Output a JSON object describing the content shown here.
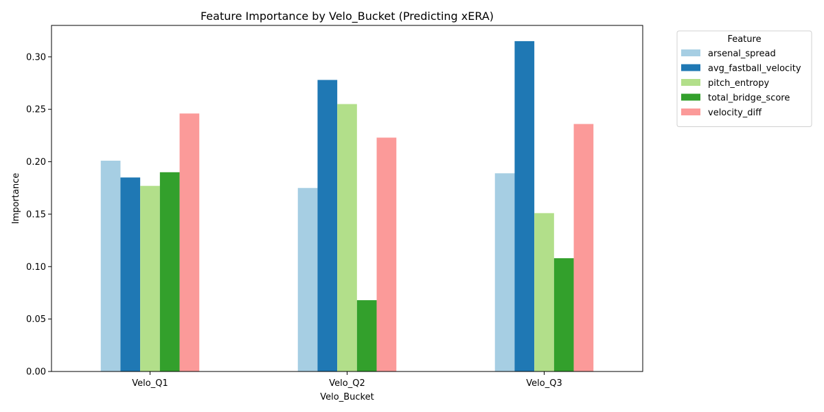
{
  "chart_data": {
    "type": "bar",
    "title": "Feature Importance by Velo_Bucket (Predicting xERA)",
    "xlabel": "Velo_Bucket",
    "ylabel": "Importance",
    "categories": [
      "Velo_Q1",
      "Velo_Q2",
      "Velo_Q3"
    ],
    "ylim": [
      0,
      0.33
    ],
    "yticks": [
      0.0,
      0.05,
      0.1,
      0.15,
      0.2,
      0.25,
      0.3
    ],
    "ytick_labels": [
      "0.00",
      "0.05",
      "0.10",
      "0.15",
      "0.20",
      "0.25",
      "0.30"
    ],
    "grid": false,
    "legend": {
      "title": "Feature",
      "placement": "outside-top-right"
    },
    "series": [
      {
        "name": "arsenal_spread",
        "color": "#a6cee3",
        "values": [
          0.201,
          0.175,
          0.189
        ]
      },
      {
        "name": "avg_fastball_velocity",
        "color": "#1f78b4",
        "values": [
          0.185,
          0.278,
          0.315
        ]
      },
      {
        "name": "pitch_entropy",
        "color": "#b2df8a",
        "values": [
          0.177,
          0.255,
          0.151
        ]
      },
      {
        "name": "total_bridge_score",
        "color": "#33a02c",
        "values": [
          0.19,
          0.068,
          0.108
        ]
      },
      {
        "name": "velocity_diff",
        "color": "#fb9a99",
        "values": [
          0.246,
          0.223,
          0.236
        ]
      }
    ]
  }
}
